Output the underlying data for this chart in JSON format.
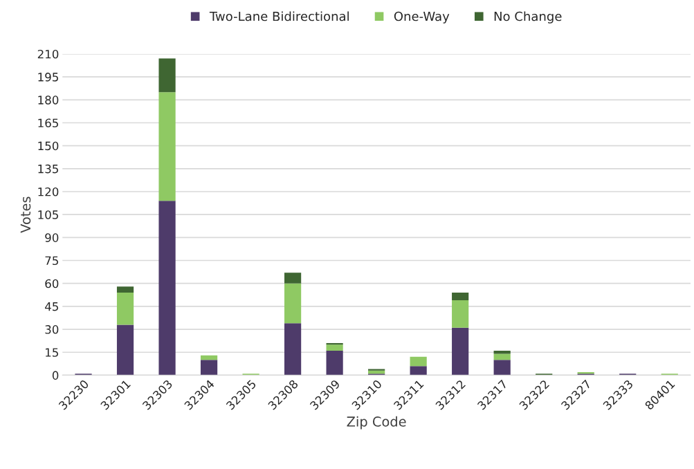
{
  "chart_data": {
    "type": "bar",
    "stacked": true,
    "xlabel": "Zip Code",
    "ylabel": "Votes",
    "categories": [
      "32230",
      "32301",
      "32303",
      "32304",
      "32305",
      "32308",
      "32309",
      "32310",
      "32311",
      "32312",
      "32317",
      "32322",
      "32327",
      "32333",
      "80401"
    ],
    "series": [
      {
        "name": "Two-Lane Bidirectional",
        "color": "#4e3b6a",
        "values": [
          1,
          33,
          114,
          10,
          0,
          34,
          16,
          1,
          6,
          31,
          10,
          0,
          1,
          1,
          0
        ]
      },
      {
        "name": "One-Way",
        "color": "#8fc963",
        "values": [
          0,
          21,
          71,
          3,
          1,
          26,
          4,
          2,
          6,
          18,
          4,
          0,
          1,
          0,
          1
        ]
      },
      {
        "name": "No Change",
        "color": "#3f6632",
        "values": [
          0,
          4,
          22,
          0,
          0,
          7,
          1,
          1,
          0,
          5,
          2,
          1,
          0,
          0,
          0
        ]
      }
    ],
    "ylim": [
      0,
      210
    ],
    "yticks": [
      0,
      15,
      30,
      45,
      60,
      75,
      90,
      105,
      120,
      135,
      150,
      165,
      180,
      195,
      210
    ],
    "grid": "y",
    "legend": "top"
  }
}
